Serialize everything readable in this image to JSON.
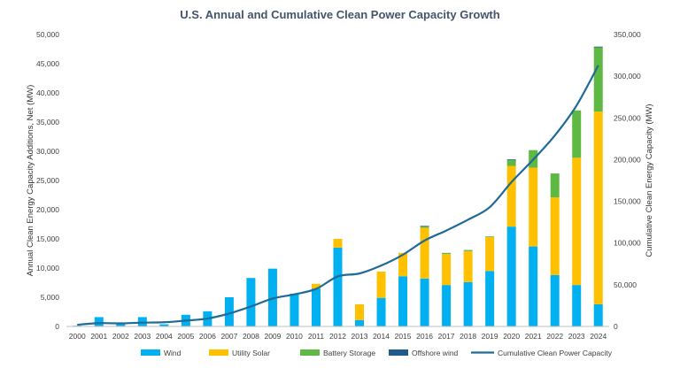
{
  "chart_data": {
    "type": "bar",
    "title": "U.S. Annual and Cumulative Clean Power Capacity Growth",
    "ylabel": "Annual Clean Energy Capacity Additions, Net (MW)",
    "y2label": "Cumulative Clean Energy Capacity (MW)",
    "ylim": [
      0,
      50000
    ],
    "y2lim": [
      0,
      350000
    ],
    "yticks": [
      "0",
      "5,000",
      "10,000",
      "15,000",
      "20,000",
      "25,000",
      "30,000",
      "35,000",
      "40,000",
      "45,000",
      "50,000"
    ],
    "y2ticks": [
      "0",
      "50,000",
      "100,000",
      "150,000",
      "200,000",
      "250,000",
      "300,000",
      "350,000"
    ],
    "grid": false,
    "legend_position": "bottom",
    "categories": [
      "2000",
      "2001",
      "2002",
      "2003",
      "2004",
      "2005",
      "2006",
      "2007",
      "2008",
      "2009",
      "2010",
      "2011",
      "2012",
      "2013",
      "2014",
      "2015",
      "2016",
      "2017",
      "2018",
      "2019",
      "2020",
      "2021",
      "2022",
      "2023",
      "2024"
    ],
    "series": [
      {
        "name": "Wind",
        "type": "bar",
        "color": "#00B0F0",
        "axis": "left",
        "values": [
          70,
          1600,
          400,
          1600,
          370,
          2000,
          2600,
          5000,
          8300,
          9900,
          5600,
          6500,
          13500,
          1100,
          4900,
          8600,
          8200,
          7100,
          7600,
          9500,
          17100,
          13700,
          8800,
          7100,
          3800
        ]
      },
      {
        "name": "Utility Solar",
        "type": "bar",
        "color": "#FFC000",
        "axis": "left",
        "values": [
          0,
          0,
          0,
          0,
          0,
          0,
          0,
          0,
          0,
          0,
          0,
          800,
          1500,
          2700,
          4500,
          4000,
          8700,
          5300,
          5300,
          5800,
          10400,
          13500,
          13300,
          21800,
          33000
        ]
      },
      {
        "name": "Battery Storage",
        "type": "bar",
        "color": "#5DB944",
        "axis": "left",
        "values": [
          0,
          0,
          0,
          0,
          0,
          0,
          0,
          0,
          0,
          0,
          0,
          0,
          0,
          0,
          0,
          0,
          200,
          200,
          200,
          100,
          1000,
          3000,
          4100,
          8100,
          11000
        ]
      },
      {
        "name": "Offshore wind",
        "type": "bar",
        "color": "#1F5C8B",
        "axis": "left",
        "values": [
          0,
          0,
          0,
          0,
          0,
          0,
          0,
          0,
          0,
          0,
          0,
          0,
          0,
          0,
          0,
          0,
          30,
          0,
          0,
          0,
          40,
          0,
          0,
          0,
          100
        ]
      },
      {
        "name": "Cumulative Clean Power Capacity",
        "type": "line",
        "color": "#1F6A96",
        "axis": "right",
        "values": [
          2000,
          4000,
          3700,
          4600,
          5000,
          7000,
          9500,
          15500,
          24000,
          33500,
          38500,
          45000,
          60000,
          63500,
          73000,
          86000,
          103000,
          115000,
          128000,
          143000,
          173000,
          200000,
          229000,
          265000,
          313000
        ]
      }
    ]
  }
}
